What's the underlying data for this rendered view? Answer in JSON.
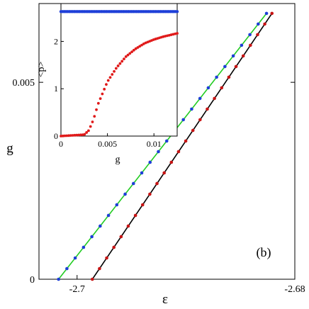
{
  "chart_data": [
    {
      "type": "line",
      "title": "",
      "xlabel": "ε",
      "ylabel": "g",
      "xlim": [
        -2.7035,
        -2.68
      ],
      "ylim": [
        0,
        0.007
      ],
      "xticks": [
        -2.7,
        -2.68
      ],
      "xtick_labels": [
        "-2.7",
        "-2.68"
      ],
      "yticks": [
        0,
        0.005
      ],
      "ytick_labels": [
        "0",
        "0.005"
      ],
      "panel_label": "(b)",
      "grid": false,
      "legend": null,
      "series": [
        {
          "color": "#1e3fd8",
          "marker": "circle",
          "line_color": "#22cc22",
          "x": [
            -2.7017,
            -2.6826
          ],
          "y": [
            0,
            0.00675
          ],
          "n_points": 26
        },
        {
          "color": "#c81414",
          "marker": "circle",
          "line_color": "#000000",
          "x": [
            -2.6986,
            -2.6821
          ],
          "y": [
            0,
            0.00675
          ],
          "n_points": 26
        }
      ]
    },
    {
      "type": "line",
      "title": "",
      "xlabel": "g",
      "ylabel": "<p>",
      "xlim": [
        0,
        0.0125
      ],
      "ylim": [
        0,
        2.8
      ],
      "xticks": [
        0,
        0.005,
        0.01
      ],
      "xtick_labels": [
        "0",
        "0.005",
        "0.01"
      ],
      "yticks": [
        0,
        1,
        2
      ],
      "ytick_labels": [
        "0",
        "1",
        "2"
      ],
      "grid": false,
      "legend": null,
      "series": [
        {
          "color": "#1e3fd8",
          "marker": "circle",
          "x": [
            0,
            0.0125
          ],
          "y": [
            2.63,
            2.63
          ],
          "n_points": 70
        },
        {
          "color": "#e01a1a",
          "marker": "circle",
          "x": [
            0,
            0.0025,
            0.003,
            0.0035,
            0.004,
            0.005,
            0.006,
            0.007,
            0.008,
            0.009,
            0.01,
            0.011,
            0.0125
          ],
          "y": [
            0,
            0.03,
            0.12,
            0.35,
            0.68,
            1.15,
            1.45,
            1.68,
            1.84,
            1.96,
            2.04,
            2.1,
            2.17
          ]
        }
      ]
    }
  ]
}
